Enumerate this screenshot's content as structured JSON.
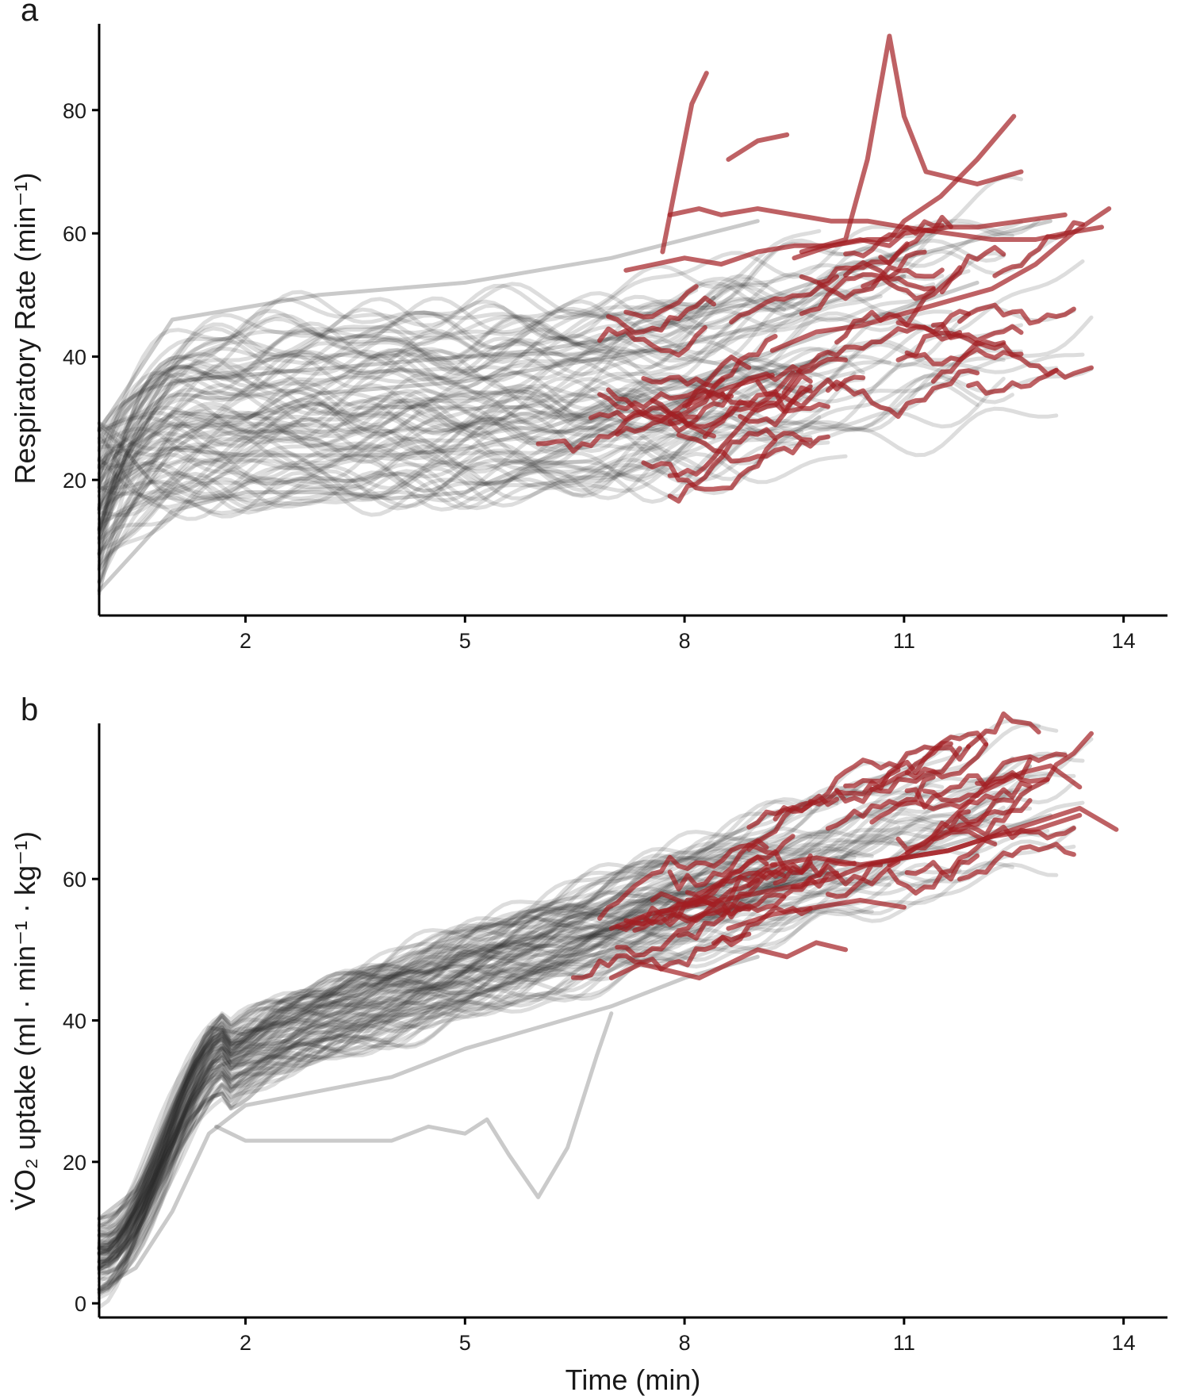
{
  "colors": {
    "normal": "#2b2b2b",
    "highlight": "#a31e22",
    "background": "#ffffff"
  },
  "chart_data": [
    {
      "type": "line",
      "panel_label": "a",
      "ylabel": "Respiratory Rate (min⁻¹)",
      "xlabel": "",
      "xlim": [
        0,
        14.6
      ],
      "ylim": [
        -2,
        94
      ],
      "x_ticks": [
        2,
        5,
        8,
        11,
        14
      ],
      "y_ticks": [
        20,
        40,
        60,
        80
      ],
      "grid": false,
      "grey_series_count": 80,
      "red_series_count": 40,
      "series": [
        {
          "x": [
            0,
            1,
            2,
            3,
            4,
            5,
            6,
            7,
            8,
            9,
            10,
            11,
            12,
            13
          ],
          "y": [
            16,
            36,
            37,
            38,
            39,
            40,
            41,
            43,
            46,
            49,
            53,
            56,
            59,
            62
          ]
        },
        {
          "x": [
            0,
            1,
            2,
            3,
            4,
            5,
            6,
            7,
            8,
            9
          ],
          "y": [
            28,
            46,
            48,
            50,
            51,
            52,
            54,
            56,
            59,
            62
          ]
        },
        {
          "x": [
            0,
            1,
            2,
            3,
            4,
            5,
            6,
            7,
            8,
            9,
            10,
            11,
            12
          ],
          "y": [
            8,
            25,
            24,
            24,
            24,
            25,
            28,
            32,
            36,
            40,
            44,
            48,
            52
          ]
        },
        {
          "x": [
            0,
            1,
            2,
            3,
            4,
            5,
            6,
            7,
            8,
            9,
            10
          ],
          "y": [
            2,
            15,
            18,
            18,
            17,
            18,
            23,
            29,
            33,
            37,
            40
          ]
        },
        {
          "x": [
            0,
            1,
            2,
            3,
            4,
            5,
            6,
            7,
            8,
            9,
            10,
            11
          ],
          "y": [
            22,
            31,
            30,
            34,
            35,
            36,
            38,
            40,
            42,
            45,
            49,
            53
          ]
        },
        {
          "x": [
            7.2,
            8.0,
            8.5,
            9.0,
            9.5,
            10.0,
            10.4,
            10.8,
            11.0,
            11.6,
            12.0,
            12.6,
            13.2
          ],
          "y": [
            54,
            56,
            55,
            57,
            58,
            58,
            59,
            58,
            60,
            61,
            61,
            62,
            63
          ],
          "group": "highlight"
        },
        {
          "x": [
            9.5,
            10.0,
            10.5,
            10.8,
            11.0,
            11.5,
            12.0,
            12.5
          ],
          "y": [
            56,
            58,
            59,
            59,
            62,
            66,
            72,
            79
          ],
          "group": "highlight"
        },
        {
          "x": [
            7.8,
            8.2,
            8.5,
            9.0,
            9.5,
            10.0,
            10.5,
            11.0,
            11.6,
            12.2,
            12.8,
            13.2,
            13.7
          ],
          "y": [
            63,
            64,
            63,
            64,
            63,
            62,
            62,
            61,
            60,
            59,
            59,
            60,
            61
          ],
          "group": "highlight"
        },
        {
          "x": [
            8.0,
            8.2,
            8.6,
            9.2
          ],
          "y": [
            32,
            33,
            35,
            37
          ],
          "group": "highlight"
        },
        {
          "x": [
            7.7,
            8.1,
            8.3
          ],
          "y": [
            57,
            81,
            86
          ],
          "group": "highlight"
        },
        {
          "x": [
            9.6,
            10.2,
            10.5,
            10.8,
            11.0,
            11.3,
            12.0,
            12.6
          ],
          "y": [
            57,
            59,
            72,
            92,
            79,
            70,
            68,
            70
          ],
          "group": "highlight"
        },
        {
          "x": [
            9.2,
            9.8,
            10.4,
            11.0,
            11.6,
            12.2,
            12.8,
            13.3,
            13.8
          ],
          "y": [
            41,
            44,
            45,
            47,
            49,
            51,
            55,
            60,
            64
          ],
          "group": "highlight"
        },
        {
          "x": [
            8.6,
            9.0,
            9.4
          ],
          "y": [
            72,
            75,
            76
          ],
          "group": "highlight"
        }
      ]
    },
    {
      "type": "line",
      "panel_label": "b",
      "ylabel": "V̇O₂ uptake (ml · min⁻¹ · kg⁻¹)",
      "xlabel": "Time (min)",
      "xlim": [
        0,
        14.6
      ],
      "ylim": [
        -2,
        82
      ],
      "x_ticks": [
        2,
        5,
        8,
        11,
        14
      ],
      "y_ticks": [
        0,
        20,
        40,
        60
      ],
      "grid": false,
      "grey_series_count": 80,
      "red_series_count": 40,
      "series": [
        {
          "x": [
            0,
            0.5,
            1.0,
            1.5,
            2,
            3,
            4,
            5,
            6,
            7,
            8,
            9,
            10,
            11,
            12,
            13
          ],
          "y": [
            5,
            10,
            22,
            33,
            35,
            37,
            40,
            43,
            47,
            50,
            54,
            58,
            61,
            63,
            66,
            69
          ]
        },
        {
          "x": [
            0,
            0.5,
            1.0,
            1.5,
            2,
            3,
            4,
            5,
            6,
            7
          ],
          "y": [
            12,
            16,
            28,
            39,
            38,
            42,
            45,
            49,
            52,
            56
          ]
        },
        {
          "x": [
            0,
            0.5,
            1.0,
            1.5,
            2,
            3,
            4,
            5,
            6,
            7,
            8,
            9
          ],
          "y": [
            2,
            5,
            13,
            24,
            28,
            30,
            32,
            36,
            39,
            42,
            46,
            49
          ]
        },
        {
          "x": [
            1.6,
            2,
            3,
            4,
            4.5,
            5.0,
            5.3,
            5.6,
            6.0,
            6.4,
            6.8,
            7.0
          ],
          "y": [
            25,
            23,
            23,
            23,
            25,
            24,
            26,
            21,
            15,
            22,
            35,
            41
          ]
        },
        {
          "x": [
            7.0,
            7.5,
            8.0,
            8.5,
            9.0,
            9.5,
            10.0,
            10.5,
            11.0,
            11.6,
            12.2,
            12.8,
            13.4,
            13.9
          ],
          "y": [
            53,
            55,
            56,
            57,
            58,
            59,
            60,
            62,
            63,
            64,
            66,
            68,
            70,
            67
          ],
          "group": "highlight"
        },
        {
          "x": [
            7.0,
            7.4,
            7.8,
            8.2,
            8.6,
            9.0,
            9.4,
            9.8,
            10.2
          ],
          "y": [
            46,
            48,
            47,
            46,
            48,
            50,
            49,
            51,
            50
          ],
          "group": "highlight"
        },
        {
          "x": [
            9.2,
            9.8,
            10.4,
            11.0,
            11.6,
            12.2,
            12.8,
            13.4
          ],
          "y": [
            62,
            63,
            62,
            63,
            64,
            66,
            67,
            69
          ],
          "group": "highlight"
        },
        {
          "x": [
            10.8,
            11.4,
            12.0,
            12.6,
            13.0,
            13.4
          ],
          "y": [
            62,
            66,
            72,
            75,
            76,
            73
          ],
          "group": "highlight"
        },
        {
          "x": [
            8.6,
            9.2,
            9.8,
            10.4,
            11.0
          ],
          "y": [
            53,
            55,
            56,
            57,
            56
          ],
          "group": "highlight"
        }
      ]
    }
  ]
}
